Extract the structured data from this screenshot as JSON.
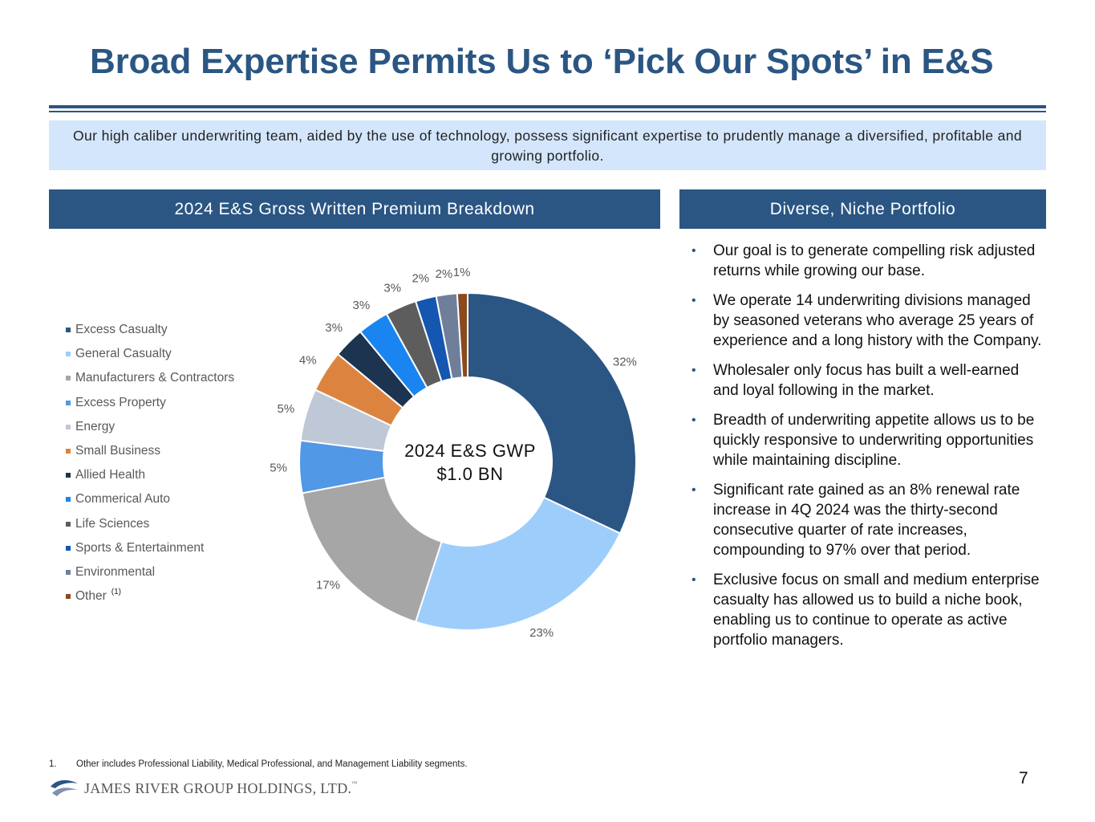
{
  "title": "Broad Expertise Permits Us to ‘Pick Our Spots’ in E&S",
  "intro": "Our high caliber underwriting team, aided by the use of technology, possess significant expertise to prudently manage a diversified, profitable and growing portfolio.",
  "left_header": "2024 E&S Gross Written Premium Breakdown",
  "right_header": "Diverse, Niche Portfolio",
  "center_label": {
    "line1": "2024 E&S GWP",
    "line2": "$1.0 BN"
  },
  "chart_data": {
    "type": "pie",
    "title": "2024 E&S Gross Written Premium Breakdown",
    "categories": [
      "Excess Casualty",
      "General Casualty",
      "Manufacturers & Contractors",
      "Excess Property",
      "Energy",
      "Small Business",
      "Allied Health",
      "Commerical Auto",
      "Life Sciences",
      "Sports & Entertainment",
      "Environmental",
      "Other"
    ],
    "values": [
      32,
      23,
      17,
      5,
      5,
      4,
      3,
      3,
      3,
      2,
      2,
      1
    ],
    "value_labels": [
      "32%",
      "23%",
      "17%",
      "5%",
      "5%",
      "4%",
      "3%",
      "3%",
      "3%",
      "2%",
      "2%",
      "1%"
    ],
    "colors": [
      "#2b5683",
      "#9dcdfb",
      "#a6a6a6",
      "#5198e6",
      "#bfc8d6",
      "#dc843f",
      "#1c3450",
      "#1a85f0",
      "#5d5d5d",
      "#1556b0",
      "#6f7f9a",
      "#8a4a1e"
    ],
    "donut": true,
    "legend_position": "left",
    "legend_footnote_marker": "(1)"
  },
  "bullets": [
    "Our goal is to generate compelling risk adjusted returns while growing our base.",
    "We operate 14 underwriting divisions managed by seasoned veterans who average 25 years of experience and a long history with the Company.",
    "Wholesaler only focus has built a well-earned and loyal following in the market.",
    "Breadth of underwriting appetite allows us to be quickly responsive to underwriting opportunities while maintaining discipline.",
    "Significant rate gained as an 8% renewal rate increase in 4Q 2024 was the thirty-second consecutive quarter of rate increases, compounding to 97% over that period.",
    "Exclusive focus on small and medium enterprise casualty has allowed us to build a niche book, enabling us to continue to operate as active portfolio managers."
  ],
  "bullet_marker": "•",
  "footnote": {
    "number": "1.",
    "text": "Other includes Professional Liability, Medical Professional, and Management Liability segments."
  },
  "page_number": "7",
  "logo": {
    "text": "JAMES RIVER GROUP HOLDINGS, LTD.",
    "tm": "™"
  }
}
